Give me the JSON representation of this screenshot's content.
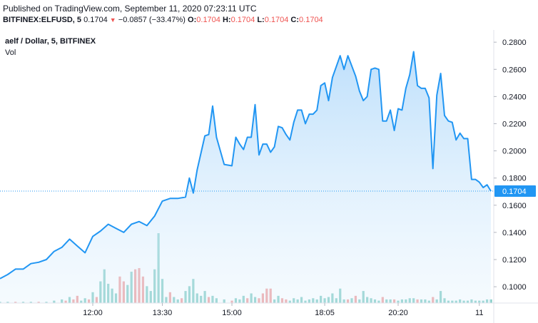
{
  "header": {
    "published": "Published on TradingView.com, September 11, 2020 07:23:11 UTC",
    "symbol": "BITFINEX:ELFUSD, 5",
    "last_price": "0.1704",
    "change_arrow": "▼",
    "change": "−0.0857 (−33.47%)",
    "o_label": "O:",
    "o_value": "0.1704",
    "h_label": "H:",
    "h_value": "0.1704",
    "l_label": "L:",
    "l_value": "0.1704",
    "c_label": "C:",
    "c_value": "0.1704"
  },
  "legend": {
    "title": "aelf / Dollar, 5, BITFINEX",
    "volume_label": "Vol"
  },
  "chart_data": {
    "type": "area",
    "colors": {
      "line": "#2196f3",
      "area_top": "#bbdefb",
      "vol_up": "#80cbc4",
      "vol_down": "#ef9a9a",
      "last_price_label": "#2196f3",
      "last_price_line": "#2196f3"
    },
    "ylim": [
      0.088,
      0.289
    ],
    "y_ticks": [
      "0.1000",
      "0.1200",
      "0.1400",
      "0.1600",
      "0.1800",
      "0.2000",
      "0.2200",
      "0.2400",
      "0.2600",
      "0.2800"
    ],
    "x_ticks": [
      {
        "label": "12:00",
        "x": 24
      },
      {
        "label": "13:30",
        "x": 42
      },
      {
        "label": "15:00",
        "x": 60
      },
      {
        "label": "18:05",
        "x": 84
      },
      {
        "label": "20:20",
        "x": 103
      },
      {
        "label": "11",
        "x": 124
      }
    ],
    "last_price": 0.1704,
    "last_price_label": "0.1704",
    "price": [
      {
        "x": 0,
        "y": 0.106
      },
      {
        "x": 2,
        "y": 0.109
      },
      {
        "x": 4,
        "y": 0.113
      },
      {
        "x": 6,
        "y": 0.113
      },
      {
        "x": 8,
        "y": 0.117
      },
      {
        "x": 10,
        "y": 0.118
      },
      {
        "x": 12,
        "y": 0.12
      },
      {
        "x": 14,
        "y": 0.126
      },
      {
        "x": 16,
        "y": 0.129
      },
      {
        "x": 18,
        "y": 0.135
      },
      {
        "x": 20,
        "y": 0.13
      },
      {
        "x": 22,
        "y": 0.125
      },
      {
        "x": 24,
        "y": 0.137
      },
      {
        "x": 26,
        "y": 0.141
      },
      {
        "x": 28,
        "y": 0.146
      },
      {
        "x": 30,
        "y": 0.143
      },
      {
        "x": 32,
        "y": 0.14
      },
      {
        "x": 34,
        "y": 0.146
      },
      {
        "x": 36,
        "y": 0.148
      },
      {
        "x": 38,
        "y": 0.145
      },
      {
        "x": 40,
        "y": 0.152
      },
      {
        "x": 42,
        "y": 0.163
      },
      {
        "x": 44,
        "y": 0.165
      },
      {
        "x": 46,
        "y": 0.165
      },
      {
        "x": 48,
        "y": 0.166
      },
      {
        "x": 49,
        "y": 0.18
      },
      {
        "x": 50,
        "y": 0.169
      },
      {
        "x": 51,
        "y": 0.186
      },
      {
        "x": 53,
        "y": 0.211
      },
      {
        "x": 54,
        "y": 0.212
      },
      {
        "x": 55,
        "y": 0.233
      },
      {
        "x": 56,
        "y": 0.21
      },
      {
        "x": 58,
        "y": 0.19
      },
      {
        "x": 60,
        "y": 0.189
      },
      {
        "x": 61,
        "y": 0.21
      },
      {
        "x": 62,
        "y": 0.205
      },
      {
        "x": 63,
        "y": 0.201
      },
      {
        "x": 64,
        "y": 0.21
      },
      {
        "x": 65,
        "y": 0.21
      },
      {
        "x": 66,
        "y": 0.234
      },
      {
        "x": 67,
        "y": 0.197
      },
      {
        "x": 68,
        "y": 0.205
      },
      {
        "x": 69,
        "y": 0.205
      },
      {
        "x": 70,
        "y": 0.199
      },
      {
        "x": 71,
        "y": 0.203
      },
      {
        "x": 72,
        "y": 0.218
      },
      {
        "x": 73,
        "y": 0.217
      },
      {
        "x": 74,
        "y": 0.212
      },
      {
        "x": 75,
        "y": 0.208
      },
      {
        "x": 76,
        "y": 0.221
      },
      {
        "x": 77,
        "y": 0.23
      },
      {
        "x": 78,
        "y": 0.23
      },
      {
        "x": 79,
        "y": 0.22
      },
      {
        "x": 80,
        "y": 0.227
      },
      {
        "x": 81,
        "y": 0.227
      },
      {
        "x": 82,
        "y": 0.23
      },
      {
        "x": 83,
        "y": 0.248
      },
      {
        "x": 84,
        "y": 0.25
      },
      {
        "x": 85,
        "y": 0.237
      },
      {
        "x": 86,
        "y": 0.254
      },
      {
        "x": 88,
        "y": 0.27
      },
      {
        "x": 89,
        "y": 0.26
      },
      {
        "x": 90,
        "y": 0.27
      },
      {
        "x": 92,
        "y": 0.255
      },
      {
        "x": 93,
        "y": 0.244
      },
      {
        "x": 94,
        "y": 0.237
      },
      {
        "x": 95,
        "y": 0.24
      },
      {
        "x": 96,
        "y": 0.26
      },
      {
        "x": 97,
        "y": 0.261
      },
      {
        "x": 98,
        "y": 0.26
      },
      {
        "x": 99,
        "y": 0.222
      },
      {
        "x": 100,
        "y": 0.222
      },
      {
        "x": 101,
        "y": 0.23
      },
      {
        "x": 102,
        "y": 0.215
      },
      {
        "x": 103,
        "y": 0.231
      },
      {
        "x": 104,
        "y": 0.23
      },
      {
        "x": 105,
        "y": 0.246
      },
      {
        "x": 106,
        "y": 0.256
      },
      {
        "x": 107,
        "y": 0.273
      },
      {
        "x": 108,
        "y": 0.248
      },
      {
        "x": 109,
        "y": 0.246
      },
      {
        "x": 110,
        "y": 0.246
      },
      {
        "x": 111,
        "y": 0.239
      },
      {
        "x": 112,
        "y": 0.187
      },
      {
        "x": 113,
        "y": 0.241
      },
      {
        "x": 114,
        "y": 0.257
      },
      {
        "x": 115,
        "y": 0.226
      },
      {
        "x": 116,
        "y": 0.222
      },
      {
        "x": 117,
        "y": 0.221
      },
      {
        "x": 118,
        "y": 0.208
      },
      {
        "x": 119,
        "y": 0.213
      },
      {
        "x": 120,
        "y": 0.209
      },
      {
        "x": 121,
        "y": 0.209
      },
      {
        "x": 122,
        "y": 0.179
      },
      {
        "x": 123,
        "y": 0.179
      },
      {
        "x": 124,
        "y": 0.177
      },
      {
        "x": 125,
        "y": 0.173
      },
      {
        "x": 126,
        "y": 0.175
      },
      {
        "x": 127,
        "y": 0.1704
      }
    ],
    "volume": [
      {
        "x": 0,
        "v": 1,
        "dir": "up"
      },
      {
        "x": 2,
        "v": 1,
        "dir": "up"
      },
      {
        "x": 4,
        "v": 1,
        "dir": "down"
      },
      {
        "x": 6,
        "v": 1,
        "dir": "up"
      },
      {
        "x": 8,
        "v": 1,
        "dir": "up"
      },
      {
        "x": 10,
        "v": 1,
        "dir": "down"
      },
      {
        "x": 12,
        "v": 1,
        "dir": "up"
      },
      {
        "x": 14,
        "v": 2,
        "dir": "up"
      },
      {
        "x": 16,
        "v": 3,
        "dir": "up"
      },
      {
        "x": 17,
        "v": 2,
        "dir": "down"
      },
      {
        "x": 18,
        "v": 5,
        "dir": "up"
      },
      {
        "x": 19,
        "v": 3,
        "dir": "down"
      },
      {
        "x": 20,
        "v": 6,
        "dir": "down"
      },
      {
        "x": 21,
        "v": 2,
        "dir": "up"
      },
      {
        "x": 22,
        "v": 4,
        "dir": "up"
      },
      {
        "x": 23,
        "v": 3,
        "dir": "down"
      },
      {
        "x": 24,
        "v": 9,
        "dir": "up"
      },
      {
        "x": 25,
        "v": 5,
        "dir": "down"
      },
      {
        "x": 26,
        "v": 18,
        "dir": "up"
      },
      {
        "x": 27,
        "v": 28,
        "dir": "up"
      },
      {
        "x": 28,
        "v": 16,
        "dir": "up"
      },
      {
        "x": 29,
        "v": 12,
        "dir": "up"
      },
      {
        "x": 30,
        "v": 8,
        "dir": "up"
      },
      {
        "x": 31,
        "v": 22,
        "dir": "down"
      },
      {
        "x": 32,
        "v": 18,
        "dir": "down"
      },
      {
        "x": 33,
        "v": 15,
        "dir": "up"
      },
      {
        "x": 34,
        "v": 26,
        "dir": "up"
      },
      {
        "x": 35,
        "v": 28,
        "dir": "down"
      },
      {
        "x": 36,
        "v": 29,
        "dir": "down"
      },
      {
        "x": 37,
        "v": 22,
        "dir": "down"
      },
      {
        "x": 38,
        "v": 14,
        "dir": "up"
      },
      {
        "x": 39,
        "v": 10,
        "dir": "up"
      },
      {
        "x": 40,
        "v": 28,
        "dir": "up"
      },
      {
        "x": 41,
        "v": 58,
        "dir": "up"
      },
      {
        "x": 42,
        "v": 20,
        "dir": "up"
      },
      {
        "x": 43,
        "v": 5,
        "dir": "up"
      },
      {
        "x": 44,
        "v": 9,
        "dir": "down"
      },
      {
        "x": 45,
        "v": 5,
        "dir": "up"
      },
      {
        "x": 46,
        "v": 3,
        "dir": "up"
      },
      {
        "x": 47,
        "v": 4,
        "dir": "down"
      },
      {
        "x": 48,
        "v": 10,
        "dir": "up"
      },
      {
        "x": 49,
        "v": 14,
        "dir": "up"
      },
      {
        "x": 50,
        "v": 20,
        "dir": "up"
      },
      {
        "x": 51,
        "v": 8,
        "dir": "up"
      },
      {
        "x": 52,
        "v": 6,
        "dir": "up"
      },
      {
        "x": 53,
        "v": 10,
        "dir": "up"
      },
      {
        "x": 54,
        "v": 5,
        "dir": "down"
      },
      {
        "x": 55,
        "v": 6,
        "dir": "up"
      },
      {
        "x": 56,
        "v": 4,
        "dir": "up"
      },
      {
        "x": 58,
        "v": 3,
        "dir": "up"
      },
      {
        "x": 60,
        "v": 2,
        "dir": "down"
      },
      {
        "x": 61,
        "v": 4,
        "dir": "up"
      },
      {
        "x": 62,
        "v": 3,
        "dir": "up"
      },
      {
        "x": 63,
        "v": 6,
        "dir": "up"
      },
      {
        "x": 64,
        "v": 4,
        "dir": "down"
      },
      {
        "x": 65,
        "v": 8,
        "dir": "up"
      },
      {
        "x": 66,
        "v": 5,
        "dir": "up"
      },
      {
        "x": 67,
        "v": 4,
        "dir": "down"
      },
      {
        "x": 68,
        "v": 8,
        "dir": "down"
      },
      {
        "x": 69,
        "v": 12,
        "dir": "down"
      },
      {
        "x": 70,
        "v": 12,
        "dir": "down"
      },
      {
        "x": 71,
        "v": 3,
        "dir": "up"
      },
      {
        "x": 72,
        "v": 6,
        "dir": "up"
      },
      {
        "x": 73,
        "v": 4,
        "dir": "down"
      },
      {
        "x": 74,
        "v": 3,
        "dir": "down"
      },
      {
        "x": 75,
        "v": 2,
        "dir": "up"
      },
      {
        "x": 76,
        "v": 4,
        "dir": "up"
      },
      {
        "x": 77,
        "v": 3,
        "dir": "up"
      },
      {
        "x": 78,
        "v": 5,
        "dir": "up"
      },
      {
        "x": 79,
        "v": 2,
        "dir": "up"
      },
      {
        "x": 80,
        "v": 3,
        "dir": "up"
      },
      {
        "x": 81,
        "v": 4,
        "dir": "up"
      },
      {
        "x": 82,
        "v": 3,
        "dir": "up"
      },
      {
        "x": 83,
        "v": 6,
        "dir": "up"
      },
      {
        "x": 84,
        "v": 4,
        "dir": "up"
      },
      {
        "x": 85,
        "v": 5,
        "dir": "up"
      },
      {
        "x": 86,
        "v": 8,
        "dir": "up"
      },
      {
        "x": 87,
        "v": 4,
        "dir": "up"
      },
      {
        "x": 88,
        "v": 12,
        "dir": "up"
      },
      {
        "x": 89,
        "v": 3,
        "dir": "up"
      },
      {
        "x": 90,
        "v": 3,
        "dir": "down"
      },
      {
        "x": 91,
        "v": 4,
        "dir": "up"
      },
      {
        "x": 92,
        "v": 6,
        "dir": "down"
      },
      {
        "x": 93,
        "v": 3,
        "dir": "up"
      },
      {
        "x": 94,
        "v": 10,
        "dir": "up"
      },
      {
        "x": 95,
        "v": 5,
        "dir": "up"
      },
      {
        "x": 96,
        "v": 4,
        "dir": "up"
      },
      {
        "x": 97,
        "v": 3,
        "dir": "up"
      },
      {
        "x": 98,
        "v": 2,
        "dir": "up"
      },
      {
        "x": 99,
        "v": 5,
        "dir": "down"
      },
      {
        "x": 100,
        "v": 3,
        "dir": "up"
      },
      {
        "x": 101,
        "v": 3,
        "dir": "up"
      },
      {
        "x": 102,
        "v": 3,
        "dir": "down"
      },
      {
        "x": 103,
        "v": 2,
        "dir": "up"
      },
      {
        "x": 104,
        "v": 3,
        "dir": "up"
      },
      {
        "x": 105,
        "v": 3,
        "dir": "up"
      },
      {
        "x": 106,
        "v": 4,
        "dir": "up"
      },
      {
        "x": 107,
        "v": 4,
        "dir": "up"
      },
      {
        "x": 108,
        "v": 3,
        "dir": "down"
      },
      {
        "x": 109,
        "v": 3,
        "dir": "up"
      },
      {
        "x": 110,
        "v": 3,
        "dir": "up"
      },
      {
        "x": 111,
        "v": 2,
        "dir": "up"
      },
      {
        "x": 112,
        "v": 5,
        "dir": "down"
      },
      {
        "x": 113,
        "v": 3,
        "dir": "up"
      },
      {
        "x": 114,
        "v": 10,
        "dir": "up"
      },
      {
        "x": 115,
        "v": 4,
        "dir": "up"
      },
      {
        "x": 116,
        "v": 2,
        "dir": "up"
      },
      {
        "x": 117,
        "v": 2,
        "dir": "up"
      },
      {
        "x": 118,
        "v": 2,
        "dir": "up"
      },
      {
        "x": 119,
        "v": 3,
        "dir": "up"
      },
      {
        "x": 120,
        "v": 2,
        "dir": "up"
      },
      {
        "x": 121,
        "v": 2,
        "dir": "up"
      },
      {
        "x": 122,
        "v": 3,
        "dir": "up"
      },
      {
        "x": 123,
        "v": 2,
        "dir": "up"
      },
      {
        "x": 124,
        "v": 2,
        "dir": "up"
      },
      {
        "x": 125,
        "v": 2,
        "dir": "up"
      },
      {
        "x": 126,
        "v": 3,
        "dir": "up"
      },
      {
        "x": 127,
        "v": 3,
        "dir": "up"
      }
    ]
  }
}
